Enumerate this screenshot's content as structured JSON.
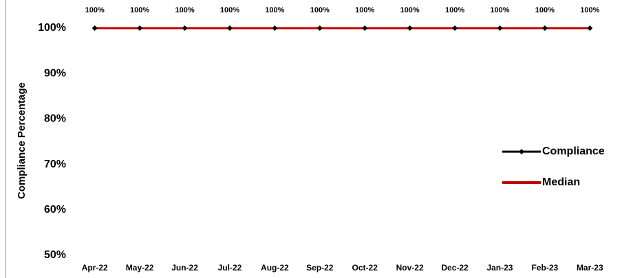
{
  "chart_data": {
    "type": "line",
    "y_label": "Compliance Percentage",
    "categories": [
      "Apr-22",
      "May-22",
      "Jun-22",
      "Jul-22",
      "Aug-22",
      "Sep-22",
      "Oct-22",
      "Nov-22",
      "Dec-22",
      "Jan-23",
      "Feb-23",
      "Mar-23"
    ],
    "series": [
      {
        "name": "Compliance",
        "color": "#000000",
        "values": [
          100,
          100,
          100,
          100,
          100,
          100,
          100,
          100,
          100,
          100,
          100,
          100
        ],
        "value_labels": [
          "100%",
          "100%",
          "100%",
          "100%",
          "100%",
          "100%",
          "100%",
          "100%",
          "100%",
          "100%",
          "100%",
          "100%"
        ]
      },
      {
        "name": "Median",
        "color": "#c00000",
        "values": [
          100,
          100,
          100,
          100,
          100,
          100,
          100,
          100,
          100,
          100,
          100,
          100
        ]
      }
    ],
    "ylim": [
      50,
      100
    ],
    "yticks": [
      {
        "value": 50,
        "label": "50%"
      },
      {
        "value": 60,
        "label": "60%"
      },
      {
        "value": 70,
        "label": "70%"
      },
      {
        "value": 80,
        "label": "80%"
      },
      {
        "value": 90,
        "label": "90%"
      },
      {
        "value": 100,
        "label": "100%"
      }
    ],
    "legend": "right"
  }
}
